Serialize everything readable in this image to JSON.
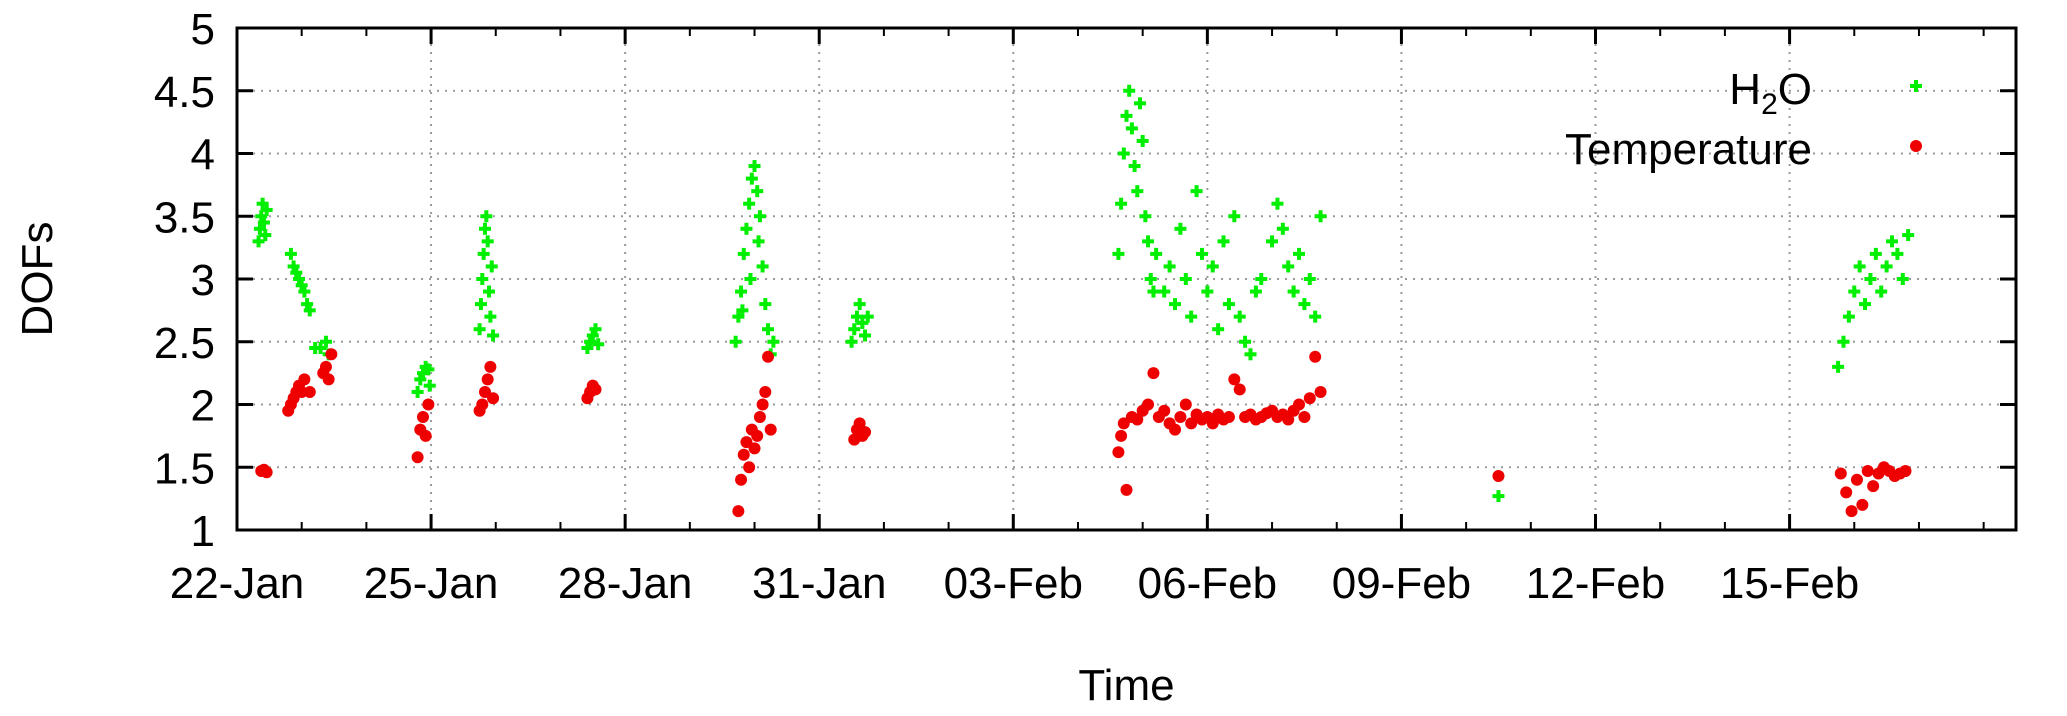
{
  "chart_data": {
    "type": "scatter",
    "title": "",
    "xlabel": "Time",
    "ylabel": "DOFs",
    "x_unit": "date",
    "xlim": [
      "2023-01-22",
      "2023-02-18T12:00"
    ],
    "ylim": [
      1,
      5
    ],
    "x_ticks": [
      {
        "label": "22-Jan",
        "x": "2023-01-22"
      },
      {
        "label": "25-Jan",
        "x": "2023-01-25"
      },
      {
        "label": "28-Jan",
        "x": "2023-01-28"
      },
      {
        "label": "31-Jan",
        "x": "2023-01-31"
      },
      {
        "label": "03-Feb",
        "x": "2023-02-03"
      },
      {
        "label": "06-Feb",
        "x": "2023-02-06"
      },
      {
        "label": "09-Feb",
        "x": "2023-02-09"
      },
      {
        "label": "12-Feb",
        "x": "2023-02-12"
      },
      {
        "label": "15-Feb",
        "x": "2023-02-15"
      }
    ],
    "y_ticks": [
      "1",
      "1.5",
      "2",
      "2.5",
      "3",
      "3.5",
      "4",
      "4.5",
      "5"
    ],
    "grid": true,
    "legend": {
      "position": "top-right"
    },
    "series": [
      {
        "name": "H2O",
        "name_main": "H",
        "name_sub": "2",
        "name_rest": "O",
        "color": "#00ee00",
        "marker": "plus",
        "points": [
          [
            "2023-01-22T08:00",
            3.3
          ],
          [
            "2023-01-22T08:30",
            3.4
          ],
          [
            "2023-01-22T09:00",
            3.5
          ],
          [
            "2023-01-22T09:30",
            3.6
          ],
          [
            "2023-01-22T10:00",
            3.45
          ],
          [
            "2023-01-22T10:30",
            3.35
          ],
          [
            "2023-01-22T11:00",
            3.55
          ],
          [
            "2023-01-22T20:00",
            3.2
          ],
          [
            "2023-01-22T21:00",
            3.1
          ],
          [
            "2023-01-22T22:00",
            3.05
          ],
          [
            "2023-01-22T23:00",
            3.0
          ],
          [
            "2023-01-23T00:00",
            2.95
          ],
          [
            "2023-01-23T01:00",
            2.9
          ],
          [
            "2023-01-23T02:00",
            2.8
          ],
          [
            "2023-01-23T03:00",
            2.75
          ],
          [
            "2023-01-23T05:00",
            2.45
          ],
          [
            "2023-01-23T07:00",
            2.45
          ],
          [
            "2023-01-23T09:00",
            2.5
          ],
          [
            "2023-01-23T10:00",
            2.4
          ],
          [
            "2023-01-24T19:00",
            2.1
          ],
          [
            "2023-01-24T20:00",
            2.2
          ],
          [
            "2023-01-24T21:00",
            2.25
          ],
          [
            "2023-01-24T22:00",
            2.3
          ],
          [
            "2023-01-24T23:00",
            2.28
          ],
          [
            "2023-01-24T23:30",
            2.15
          ],
          [
            "2023-01-25T18:00",
            2.6
          ],
          [
            "2023-01-25T18:30",
            2.8
          ],
          [
            "2023-01-25T19:00",
            3.0
          ],
          [
            "2023-01-25T19:30",
            3.2
          ],
          [
            "2023-01-25T20:00",
            3.4
          ],
          [
            "2023-01-25T20:30",
            3.5
          ],
          [
            "2023-01-25T21:00",
            3.3
          ],
          [
            "2023-01-25T21:30",
            2.9
          ],
          [
            "2023-01-25T22:00",
            2.7
          ],
          [
            "2023-01-25T22:30",
            3.1
          ],
          [
            "2023-01-25T23:00",
            2.55
          ],
          [
            "2023-01-27T10:00",
            2.45
          ],
          [
            "2023-01-27T11:00",
            2.5
          ],
          [
            "2023-01-27T12:00",
            2.55
          ],
          [
            "2023-01-27T13:00",
            2.6
          ],
          [
            "2023-01-27T14:00",
            2.48
          ],
          [
            "2023-01-29T17:00",
            2.5
          ],
          [
            "2023-01-29T18:00",
            2.7
          ],
          [
            "2023-01-29T19:00",
            2.9
          ],
          [
            "2023-01-29T20:00",
            3.2
          ],
          [
            "2023-01-29T21:00",
            3.4
          ],
          [
            "2023-01-29T22:00",
            3.6
          ],
          [
            "2023-01-29T23:00",
            3.8
          ],
          [
            "2023-01-30T00:00",
            3.9
          ],
          [
            "2023-01-30T01:00",
            3.7
          ],
          [
            "2023-01-30T02:00",
            3.5
          ],
          [
            "2023-01-30T03:00",
            3.1
          ],
          [
            "2023-01-30T04:00",
            2.8
          ],
          [
            "2023-01-30T05:00",
            2.6
          ],
          [
            "2023-01-30T06:00",
            2.4
          ],
          [
            "2023-01-30T07:00",
            2.5
          ],
          [
            "2023-01-29T19:30",
            2.75
          ],
          [
            "2023-01-29T22:30",
            3.0
          ],
          [
            "2023-01-30T01:30",
            3.3
          ],
          [
            "2023-01-31T12:00",
            2.5
          ],
          [
            "2023-01-31T13:00",
            2.6
          ],
          [
            "2023-01-31T14:00",
            2.7
          ],
          [
            "2023-01-31T15:00",
            2.8
          ],
          [
            "2023-01-31T16:00",
            2.65
          ],
          [
            "2023-01-31T17:00",
            2.55
          ],
          [
            "2023-01-31T18:00",
            2.7
          ],
          [
            "2023-02-04T15:00",
            3.2
          ],
          [
            "2023-02-04T16:00",
            3.6
          ],
          [
            "2023-02-04T17:00",
            4.0
          ],
          [
            "2023-02-04T18:00",
            4.3
          ],
          [
            "2023-02-04T19:00",
            4.5
          ],
          [
            "2023-02-04T20:00",
            4.2
          ],
          [
            "2023-02-04T21:00",
            3.9
          ],
          [
            "2023-02-04T22:00",
            3.7
          ],
          [
            "2023-02-04T23:00",
            4.4
          ],
          [
            "2023-02-05T00:00",
            4.1
          ],
          [
            "2023-02-05T01:00",
            3.5
          ],
          [
            "2023-02-05T02:00",
            3.3
          ],
          [
            "2023-02-05T03:00",
            3.0
          ],
          [
            "2023-02-05T04:00",
            2.9
          ],
          [
            "2023-02-05T05:00",
            3.2
          ],
          [
            "2023-02-05T08:00",
            2.9
          ],
          [
            "2023-02-05T10:00",
            3.1
          ],
          [
            "2023-02-05T12:00",
            2.8
          ],
          [
            "2023-02-05T14:00",
            3.4
          ],
          [
            "2023-02-05T16:00",
            3.0
          ],
          [
            "2023-02-05T18:00",
            2.7
          ],
          [
            "2023-02-05T20:00",
            3.7
          ],
          [
            "2023-02-05T22:00",
            3.2
          ],
          [
            "2023-02-06T00:00",
            2.9
          ],
          [
            "2023-02-06T02:00",
            3.1
          ],
          [
            "2023-02-06T04:00",
            2.6
          ],
          [
            "2023-02-06T06:00",
            3.3
          ],
          [
            "2023-02-06T08:00",
            2.8
          ],
          [
            "2023-02-06T10:00",
            3.5
          ],
          [
            "2023-02-06T12:00",
            2.7
          ],
          [
            "2023-02-06T14:00",
            2.5
          ],
          [
            "2023-02-06T16:00",
            2.4
          ],
          [
            "2023-02-06T18:00",
            2.9
          ],
          [
            "2023-02-06T20:00",
            3.0
          ],
          [
            "2023-02-07T00:00",
            3.3
          ],
          [
            "2023-02-07T02:00",
            3.6
          ],
          [
            "2023-02-07T04:00",
            3.4
          ],
          [
            "2023-02-07T06:00",
            3.1
          ],
          [
            "2023-02-07T08:00",
            2.9
          ],
          [
            "2023-02-07T10:00",
            3.2
          ],
          [
            "2023-02-07T12:00",
            2.8
          ],
          [
            "2023-02-07T14:00",
            3.0
          ],
          [
            "2023-02-07T16:00",
            2.7
          ],
          [
            "2023-02-07T18:00",
            3.5
          ],
          [
            "2023-02-10T12:00",
            1.27
          ],
          [
            "2023-02-15T18:00",
            2.3
          ],
          [
            "2023-02-15T20:00",
            2.5
          ],
          [
            "2023-02-15T22:00",
            2.7
          ],
          [
            "2023-02-16T00:00",
            2.9
          ],
          [
            "2023-02-16T02:00",
            3.1
          ],
          [
            "2023-02-16T04:00",
            2.8
          ],
          [
            "2023-02-16T06:00",
            3.0
          ],
          [
            "2023-02-16T08:00",
            3.2
          ],
          [
            "2023-02-16T10:00",
            2.9
          ],
          [
            "2023-02-16T12:00",
            3.1
          ],
          [
            "2023-02-16T14:00",
            3.3
          ],
          [
            "2023-02-16T16:00",
            3.2
          ],
          [
            "2023-02-16T18:00",
            3.0
          ],
          [
            "2023-02-16T20:00",
            3.35
          ]
        ]
      },
      {
        "name": "Temperature",
        "color": "#ee0000",
        "marker": "dot",
        "points": [
          [
            "2023-01-22T09:00",
            1.47
          ],
          [
            "2023-01-22T10:00",
            1.48
          ],
          [
            "2023-01-22T11:00",
            1.46
          ],
          [
            "2023-01-22T19:00",
            1.95
          ],
          [
            "2023-01-22T20:00",
            2.0
          ],
          [
            "2023-01-22T21:00",
            2.05
          ],
          [
            "2023-01-22T22:00",
            2.1
          ],
          [
            "2023-01-22T23:00",
            2.15
          ],
          [
            "2023-01-23T00:00",
            2.1
          ],
          [
            "2023-01-23T01:00",
            2.2
          ],
          [
            "2023-01-23T03:00",
            2.1
          ],
          [
            "2023-01-23T08:00",
            2.25
          ],
          [
            "2023-01-23T09:00",
            2.3
          ],
          [
            "2023-01-23T10:00",
            2.2
          ],
          [
            "2023-01-23T11:00",
            2.4
          ],
          [
            "2023-01-24T19:00",
            1.58
          ],
          [
            "2023-01-24T20:00",
            1.8
          ],
          [
            "2023-01-24T21:00",
            1.9
          ],
          [
            "2023-01-24T22:00",
            1.75
          ],
          [
            "2023-01-24T23:00",
            2.0
          ],
          [
            "2023-01-25T18:00",
            1.95
          ],
          [
            "2023-01-25T19:00",
            2.0
          ],
          [
            "2023-01-25T20:00",
            2.1
          ],
          [
            "2023-01-25T21:00",
            2.2
          ],
          [
            "2023-01-25T22:00",
            2.3
          ],
          [
            "2023-01-25T23:00",
            2.05
          ],
          [
            "2023-01-27T10:00",
            2.05
          ],
          [
            "2023-01-27T11:00",
            2.1
          ],
          [
            "2023-01-27T12:00",
            2.15
          ],
          [
            "2023-01-27T13:00",
            2.12
          ],
          [
            "2023-01-29T18:00",
            1.15
          ],
          [
            "2023-01-29T19:00",
            1.4
          ],
          [
            "2023-01-29T20:00",
            1.6
          ],
          [
            "2023-01-29T21:00",
            1.7
          ],
          [
            "2023-01-29T22:00",
            1.5
          ],
          [
            "2023-01-29T23:00",
            1.8
          ],
          [
            "2023-01-30T00:00",
            1.65
          ],
          [
            "2023-01-30T01:00",
            1.75
          ],
          [
            "2023-01-30T02:00",
            1.9
          ],
          [
            "2023-01-30T03:00",
            2.0
          ],
          [
            "2023-01-30T04:00",
            2.1
          ],
          [
            "2023-01-30T05:00",
            2.38
          ],
          [
            "2023-01-30T06:00",
            1.8
          ],
          [
            "2023-01-31T13:00",
            1.72
          ],
          [
            "2023-01-31T14:00",
            1.8
          ],
          [
            "2023-01-31T15:00",
            1.85
          ],
          [
            "2023-01-31T16:00",
            1.75
          ],
          [
            "2023-01-31T17:00",
            1.78
          ],
          [
            "2023-02-04T15:00",
            1.62
          ],
          [
            "2023-02-04T16:00",
            1.75
          ],
          [
            "2023-02-04T17:00",
            1.85
          ],
          [
            "2023-02-04T18:00",
            1.32
          ],
          [
            "2023-02-04T20:00",
            1.9
          ],
          [
            "2023-02-04T22:00",
            1.88
          ],
          [
            "2023-02-05T00:00",
            1.95
          ],
          [
            "2023-02-05T02:00",
            2.0
          ],
          [
            "2023-02-05T04:00",
            2.25
          ],
          [
            "2023-02-05T06:00",
            1.9
          ],
          [
            "2023-02-05T08:00",
            1.95
          ],
          [
            "2023-02-05T10:00",
            1.85
          ],
          [
            "2023-02-05T12:00",
            1.8
          ],
          [
            "2023-02-05T14:00",
            1.9
          ],
          [
            "2023-02-05T16:00",
            2.0
          ],
          [
            "2023-02-05T18:00",
            1.85
          ],
          [
            "2023-02-05T20:00",
            1.92
          ],
          [
            "2023-02-05T22:00",
            1.88
          ],
          [
            "2023-02-06T00:00",
            1.9
          ],
          [
            "2023-02-06T02:00",
            1.85
          ],
          [
            "2023-02-06T04:00",
            1.92
          ],
          [
            "2023-02-06T06:00",
            1.88
          ],
          [
            "2023-02-06T08:00",
            1.9
          ],
          [
            "2023-02-06T10:00",
            2.2
          ],
          [
            "2023-02-06T12:00",
            2.12
          ],
          [
            "2023-02-06T14:00",
            1.9
          ],
          [
            "2023-02-06T16:00",
            1.92
          ],
          [
            "2023-02-06T18:00",
            1.88
          ],
          [
            "2023-02-06T20:00",
            1.9
          ],
          [
            "2023-02-06T22:00",
            1.93
          ],
          [
            "2023-02-07T00:00",
            1.95
          ],
          [
            "2023-02-07T02:00",
            1.9
          ],
          [
            "2023-02-07T04:00",
            1.92
          ],
          [
            "2023-02-07T06:00",
            1.88
          ],
          [
            "2023-02-07T08:00",
            1.95
          ],
          [
            "2023-02-07T10:00",
            2.0
          ],
          [
            "2023-02-07T12:00",
            1.9
          ],
          [
            "2023-02-07T14:00",
            2.05
          ],
          [
            "2023-02-07T16:00",
            2.38
          ],
          [
            "2023-02-07T18:00",
            2.1
          ],
          [
            "2023-02-10T12:00",
            1.43
          ],
          [
            "2023-02-15T19:00",
            1.45
          ],
          [
            "2023-02-15T21:00",
            1.3
          ],
          [
            "2023-02-15T23:00",
            1.15
          ],
          [
            "2023-02-16T01:00",
            1.4
          ],
          [
            "2023-02-16T03:00",
            1.2
          ],
          [
            "2023-02-16T05:00",
            1.47
          ],
          [
            "2023-02-16T07:00",
            1.35
          ],
          [
            "2023-02-16T09:00",
            1.45
          ],
          [
            "2023-02-16T11:00",
            1.5
          ],
          [
            "2023-02-16T13:00",
            1.47
          ],
          [
            "2023-02-16T15:00",
            1.43
          ],
          [
            "2023-02-16T17:00",
            1.45
          ],
          [
            "2023-02-16T19:00",
            1.47
          ]
        ]
      }
    ]
  }
}
